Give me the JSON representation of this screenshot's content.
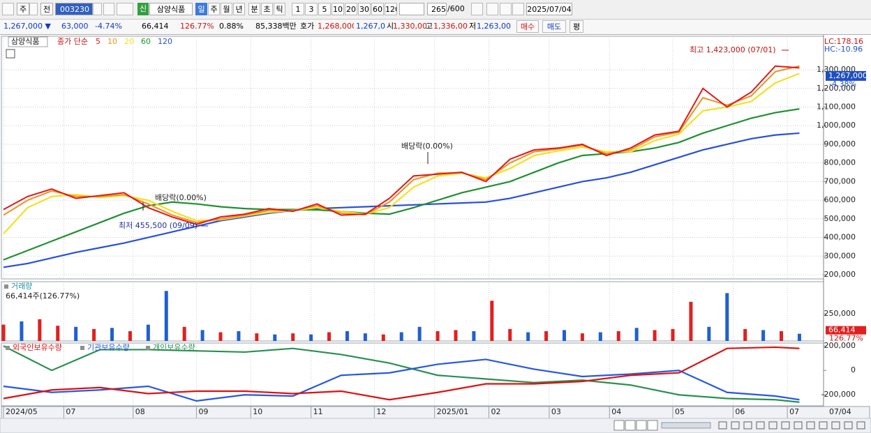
{
  "toolbar": {
    "period_type": "주",
    "compare": "전",
    "code": "003230",
    "badge": "신",
    "name": "삼양식품",
    "periods": [
      "일",
      "주",
      "월",
      "년",
      "분",
      "초",
      "틱"
    ],
    "intervals": [
      "1",
      "3",
      "5",
      "10",
      "20",
      "30",
      "60",
      "120"
    ],
    "count": "265",
    "max": "/600",
    "date": "2025/07/04"
  },
  "info": {
    "price": "1,267,000 ▼",
    "change": "63,000",
    "rate": "-4.74%",
    "volume": "66,414",
    "volume_rate": "126.77%",
    "turnover": "0.88%",
    "amount": "85,338백만",
    "quote_label": "호가",
    "ask": "1,268,000",
    "bid": "1,267,0",
    "open_label": "시",
    "open": "1,330,00",
    "high_label": "고",
    "high": "1,336,00",
    "low_label": "저",
    "low": "1,263,00",
    "buy": "매수",
    "sell": "매도",
    "avg": "평"
  },
  "chart_data": [
    {
      "type": "line",
      "title": "삼양식품",
      "legend_label": "종가 단순",
      "x": [
        0,
        8,
        16,
        24,
        32,
        40,
        48,
        56,
        64,
        72,
        80,
        88,
        96,
        104,
        112,
        120,
        128,
        136,
        144,
        152,
        160,
        168,
        176,
        184,
        192,
        200,
        208,
        216,
        224,
        232,
        240,
        248,
        256,
        264
      ],
      "xlim": [
        0,
        272
      ],
      "xticks": [
        {
          "value": 0,
          "label": "2024/05"
        },
        {
          "value": 20,
          "label": "07"
        },
        {
          "value": 43,
          "label": "08"
        },
        {
          "value": 64,
          "label": "09"
        },
        {
          "value": 82,
          "label": "10"
        },
        {
          "value": 102,
          "label": "11"
        },
        {
          "value": 123,
          "label": "12"
        },
        {
          "value": 143,
          "label": "2025/01"
        },
        {
          "value": 161,
          "label": "02"
        },
        {
          "value": 181,
          "label": "03"
        },
        {
          "value": 201,
          "label": "04"
        },
        {
          "value": 222,
          "label": "05"
        },
        {
          "value": 242,
          "label": "06"
        },
        {
          "value": 260,
          "label": "07"
        }
      ],
      "x_end_label": "07/04",
      "ylim": [
        177500,
        1480000
      ],
      "yticks": [
        {
          "value": 200000,
          "label": "200,000"
        },
        {
          "value": 300000,
          "label": "300,000"
        },
        {
          "value": 400000,
          "label": "400,000"
        },
        {
          "value": 500000,
          "label": "500,000"
        },
        {
          "value": 600000,
          "label": "600,000"
        },
        {
          "value": 700000,
          "label": "700,000"
        },
        {
          "value": 800000,
          "label": "800,000"
        },
        {
          "value": 900000,
          "label": "900,000"
        },
        {
          "value": 1000000,
          "label": "1,000,000"
        },
        {
          "value": 1100000,
          "label": "1,100,000"
        },
        {
          "value": 1200000,
          "label": "1,200,000"
        },
        {
          "value": 1300000,
          "label": "1,300,000"
        }
      ],
      "grid": true,
      "series": [
        {
          "name": "5",
          "color": "#e01818",
          "values": [
            550000,
            620000,
            660000,
            610000,
            625000,
            640000,
            560000,
            510000,
            470000,
            510000,
            525000,
            555000,
            540000,
            580000,
            520000,
            525000,
            610000,
            730000,
            740000,
            750000,
            700000,
            820000,
            870000,
            880000,
            900000,
            840000,
            880000,
            950000,
            970000,
            1200000,
            1100000,
            1180000,
            1320000,
            1310000
          ]
        },
        {
          "name": "10",
          "color": "#f09020",
          "values": [
            520000,
            600000,
            650000,
            620000,
            620000,
            630000,
            580000,
            520000,
            480000,
            500000,
            520000,
            545000,
            545000,
            570000,
            530000,
            522000,
            590000,
            710000,
            745000,
            748000,
            710000,
            800000,
            860000,
            875000,
            895000,
            850000,
            870000,
            940000,
            965000,
            1150000,
            1110000,
            1160000,
            1290000,
            1320000
          ]
        },
        {
          "name": "20",
          "color": "#f4e020",
          "values": [
            420000,
            560000,
            620000,
            630000,
            615000,
            625000,
            600000,
            540000,
            490000,
            495000,
            515000,
            535000,
            545000,
            560000,
            540000,
            525000,
            560000,
            670000,
            730000,
            745000,
            720000,
            770000,
            840000,
            865000,
            885000,
            860000,
            860000,
            920000,
            955000,
            1080000,
            1100000,
            1130000,
            1230000,
            1280000
          ]
        },
        {
          "name": "60",
          "color": "#209030",
          "values": [
            280000,
            330000,
            380000,
            430000,
            480000,
            530000,
            570000,
            590000,
            580000,
            565000,
            555000,
            550000,
            550000,
            548000,
            540000,
            530000,
            525000,
            560000,
            600000,
            640000,
            670000,
            700000,
            750000,
            800000,
            840000,
            850000,
            860000,
            880000,
            910000,
            960000,
            1000000,
            1040000,
            1070000,
            1090000
          ]
        },
        {
          "name": "120",
          "color": "#2850d8",
          "values": [
            240000,
            260000,
            290000,
            320000,
            345000,
            370000,
            400000,
            430000,
            460000,
            490000,
            510000,
            530000,
            545000,
            555000,
            560000,
            565000,
            570000,
            575000,
            580000,
            585000,
            590000,
            610000,
            640000,
            670000,
            700000,
            720000,
            750000,
            790000,
            830000,
            870000,
            900000,
            930000,
            950000,
            960000
          ]
        }
      ],
      "annotations": [
        "최고 1,423,000 (07/01)",
        "최저 455,500 (09/09)",
        "배당락(0.00%)",
        "배당락(0.00%)"
      ],
      "price_box": {
        "value": 1267000,
        "label": "1,267,000"
      },
      "price_change": "-4.38%",
      "lc": "LC:178.16",
      "hc": "HC:-10.96"
    },
    {
      "type": "bar",
      "title": "거래량",
      "subtitle": "66,414주(126.77%)",
      "x": [
        0,
        6,
        12,
        18,
        24,
        30,
        36,
        42,
        48,
        54,
        60,
        66,
        72,
        78,
        84,
        90,
        96,
        102,
        108,
        114,
        120,
        126,
        132,
        138,
        144,
        150,
        156,
        162,
        168,
        174,
        180,
        186,
        192,
        198,
        204,
        210,
        216,
        222,
        228,
        234,
        240,
        246,
        252,
        258,
        264
      ],
      "xlim": [
        0,
        272
      ],
      "ylim": [
        0,
        545000
      ],
      "yticks": [
        {
          "value": 250000,
          "label": "250,000"
        }
      ],
      "values": [
        150000,
        180000,
        200000,
        140000,
        130000,
        110000,
        120000,
        90000,
        150000,
        460000,
        130000,
        100000,
        80000,
        90000,
        70000,
        60000,
        70000,
        60000,
        80000,
        90000,
        70000,
        60000,
        80000,
        130000,
        90000,
        100000,
        90000,
        370000,
        110000,
        80000,
        90000,
        100000,
        70000,
        80000,
        90000,
        120000,
        100000,
        110000,
        360000,
        130000,
        440000,
        110000,
        100000,
        90000,
        66414
      ],
      "colors": [
        "#e02020",
        "#2060d0",
        "#e02020",
        "#e02020",
        "#2060d0",
        "#e02020",
        "#2060d0",
        "#e02020",
        "#2060d0",
        "#2060d0",
        "#e02020",
        "#2060d0",
        "#e02020",
        "#2060d0",
        "#e02020",
        "#2060d0",
        "#e02020",
        "#2060d0",
        "#e02020",
        "#2060d0",
        "#2060d0",
        "#e02020",
        "#2060d0",
        "#2060d0",
        "#e02020",
        "#e02020",
        "#2060d0",
        "#e02020",
        "#e02020",
        "#2060d0",
        "#e02020",
        "#2060d0",
        "#e02020",
        "#2060d0",
        "#e02020",
        "#2060d0",
        "#e02020",
        "#e02020",
        "#e02020",
        "#2060d0",
        "#2060d0",
        "#e02020",
        "#2060d0",
        "#e02020",
        "#2060d0"
      ],
      "last_label": {
        "value": 66414,
        "label": "66,414"
      },
      "last_rate": "126.77%"
    },
    {
      "type": "line",
      "x": [
        0,
        16,
        32,
        48,
        64,
        80,
        96,
        112,
        128,
        144,
        160,
        176,
        192,
        208,
        224,
        240,
        256,
        264
      ],
      "xlim": [
        0,
        272
      ],
      "ylim": [
        -290000,
        224000
      ],
      "yticks": [
        {
          "value": 200000,
          "label": "200,000"
        },
        0,
        {
          "value": -200000,
          "label": "-200,000"
        }
      ],
      "series": [
        {
          "name": "외국인보유수량",
          "color": "#e01010",
          "values": [
            -230000,
            -160000,
            -140000,
            -190000,
            -170000,
            -170000,
            -190000,
            -170000,
            -240000,
            -180000,
            -110000,
            -110000,
            -90000,
            -40000,
            -20000,
            180000,
            190000,
            180000
          ]
        },
        {
          "name": "기관보유수량",
          "color": "#2858e0",
          "values": [
            -130000,
            -180000,
            -160000,
            -130000,
            -250000,
            -200000,
            -210000,
            -40000,
            -20000,
            50000,
            90000,
            10000,
            -50000,
            -30000,
            0,
            -180000,
            -210000,
            -240000
          ]
        },
        {
          "name": "개인보유수량",
          "color": "#2a9050",
          "values": [
            200000,
            0,
            170000,
            170000,
            160000,
            150000,
            180000,
            130000,
            60000,
            -40000,
            -70000,
            -100000,
            -80000,
            -120000,
            -200000,
            -230000,
            -240000,
            -260000
          ]
        }
      ]
    }
  ]
}
